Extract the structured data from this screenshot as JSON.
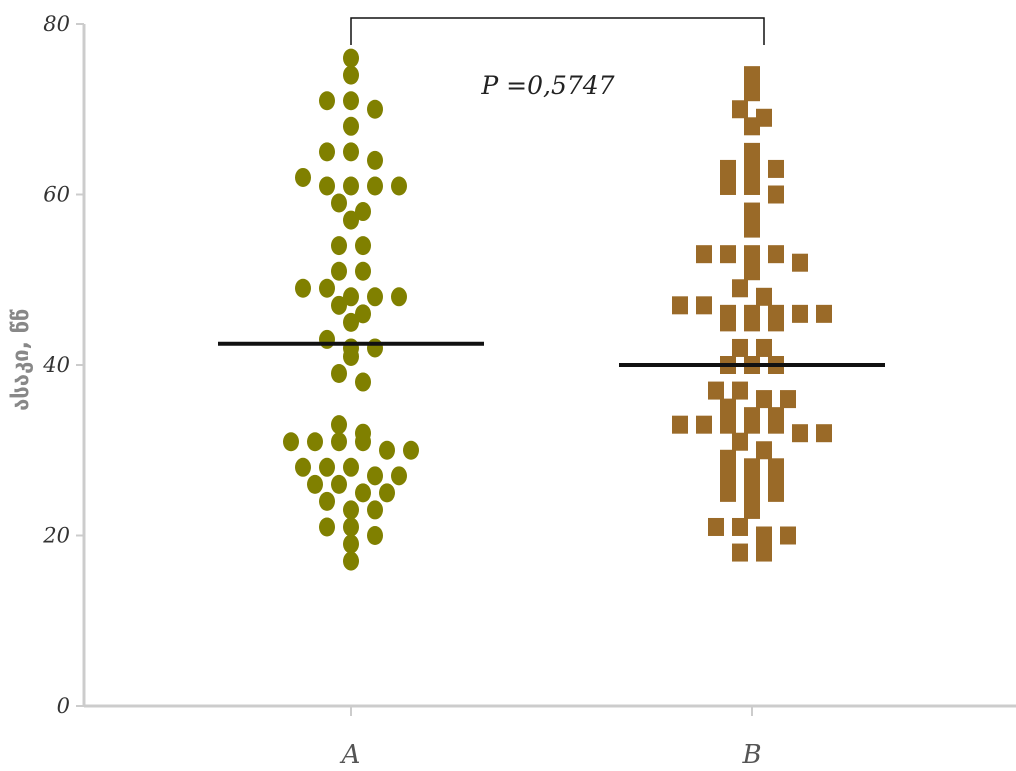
{
  "chart_data": {
    "type": "scatter",
    "subtype": "dot-plot",
    "ylabel": "ასაკი, წწ",
    "ylim": [
      0,
      80
    ],
    "yticks": [
      "0",
      "20",
      "40",
      "60",
      "80"
    ],
    "categories": [
      "A",
      "B"
    ],
    "grid": false,
    "legend": "none",
    "annotation": "P =0,5747",
    "series": [
      {
        "category": "A",
        "marker": "circle",
        "color": "#808000",
        "mean": 42.5,
        "values": [
          76,
          74,
          71,
          71,
          70,
          68,
          65,
          65,
          64,
          62,
          61,
          61,
          61,
          61,
          59,
          58,
          57,
          54,
          54,
          51,
          51,
          49,
          49,
          48,
          48,
          48,
          47,
          46,
          45,
          43,
          42,
          42,
          41,
          39,
          38,
          33,
          32,
          31,
          31,
          31,
          31,
          30,
          30,
          28,
          28,
          28,
          27,
          27,
          26,
          26,
          25,
          25,
          24,
          23,
          23,
          21,
          21,
          20,
          19,
          17
        ]
      },
      {
        "category": "B",
        "marker": "square",
        "color": "#9A6A28",
        "mean": 40,
        "values": [
          74,
          72,
          70,
          69,
          68,
          65,
          63,
          63,
          63,
          61,
          61,
          60,
          58,
          56,
          53,
          53,
          53,
          53,
          52,
          51,
          49,
          48,
          47,
          47,
          46,
          46,
          46,
          46,
          46,
          45,
          45,
          45,
          42,
          42,
          40,
          40,
          40,
          37,
          37,
          36,
          36,
          35,
          34,
          34,
          33,
          33,
          33,
          33,
          33,
          32,
          32,
          31,
          30,
          29,
          28,
          28,
          27,
          26,
          26,
          25,
          25,
          25,
          23,
          21,
          21,
          20,
          20,
          18,
          18
        ]
      }
    ]
  }
}
